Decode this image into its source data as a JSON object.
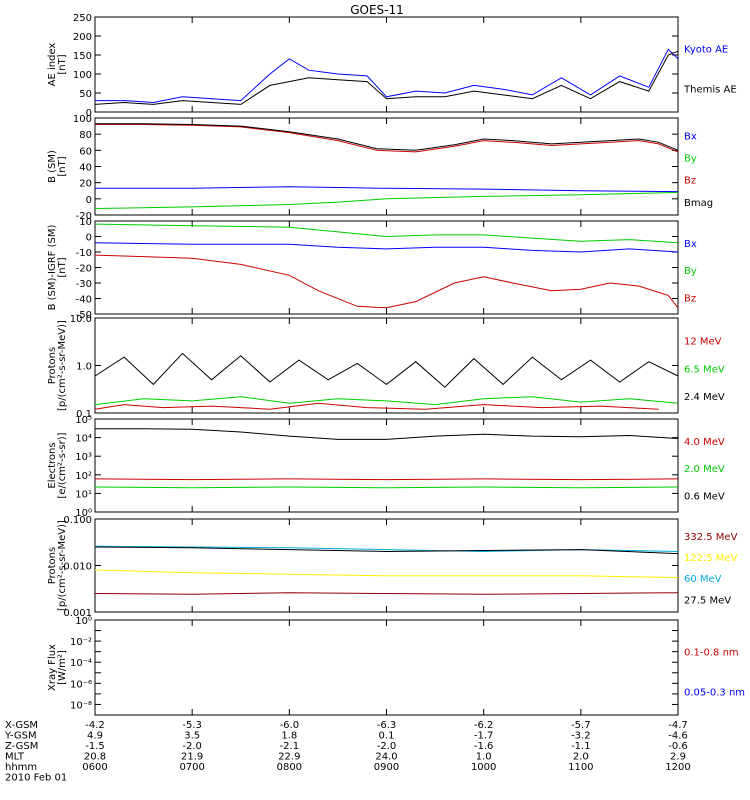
{
  "title": "GOES-11",
  "colors": {
    "black": "#000000",
    "blue": "#0000ff",
    "red": "#cc0000",
    "green": "#00cc00",
    "darkred": "#8b0000",
    "yellow": "#ffee00",
    "cyan": "#00aadd"
  },
  "chart_data": [
    {
      "type": "line",
      "ylabel": "AE index\n[nT]",
      "ylim": [
        0,
        250
      ],
      "yscale": "linear",
      "yticks": [
        0,
        50,
        100,
        150,
        200,
        250
      ],
      "yticklabels": [
        "0",
        "50",
        "100",
        "150",
        "200",
        "250"
      ],
      "series": [
        {
          "name": "Kyoto AE",
          "color": "blue",
          "x": [
            6,
            6.3,
            6.6,
            6.9,
            7.2,
            7.5,
            7.8,
            8.0,
            8.2,
            8.5,
            8.8,
            9.0,
            9.3,
            9.6,
            9.9,
            10.2,
            10.5,
            10.8,
            11.1,
            11.4,
            11.7,
            11.9,
            12.0
          ],
          "y": [
            30,
            30,
            25,
            40,
            35,
            30,
            100,
            140,
            110,
            100,
            95,
            40,
            55,
            50,
            70,
            60,
            45,
            90,
            45,
            95,
            65,
            165,
            140
          ]
        },
        {
          "name": "Themis AE",
          "color": "black",
          "x": [
            6,
            6.3,
            6.6,
            6.9,
            7.2,
            7.5,
            7.8,
            8.0,
            8.2,
            8.5,
            8.8,
            9.0,
            9.3,
            9.6,
            9.9,
            10.2,
            10.5,
            10.8,
            11.1,
            11.4,
            11.7,
            11.9,
            12.0
          ],
          "y": [
            20,
            25,
            20,
            30,
            25,
            20,
            70,
            80,
            90,
            85,
            80,
            35,
            40,
            40,
            55,
            45,
            35,
            70,
            35,
            80,
            55,
            150,
            160
          ]
        }
      ]
    },
    {
      "type": "line",
      "ylabel": "B (SM)\n[nT]",
      "ylim": [
        -20,
        100
      ],
      "yscale": "linear",
      "yticks": [
        -20,
        0,
        20,
        40,
        60,
        80,
        100
      ],
      "yticklabels": [
        "-20",
        "0",
        "20",
        "40",
        "60",
        "80",
        "100"
      ],
      "series": [
        {
          "name": "Bx",
          "color": "blue",
          "x": [
            6,
            7,
            8,
            8.5,
            9,
            10,
            11,
            12
          ],
          "y": [
            13,
            13,
            15,
            14,
            13,
            12,
            10,
            9
          ]
        },
        {
          "name": "By",
          "color": "green",
          "x": [
            6,
            7,
            8,
            8.5,
            9,
            10,
            11,
            12
          ],
          "y": [
            -12,
            -10,
            -7,
            -4,
            0,
            3,
            5,
            8
          ]
        },
        {
          "name": "Bz",
          "color": "red",
          "x": [
            6,
            6.5,
            7,
            7.5,
            8,
            8.5,
            8.9,
            9.3,
            9.7,
            10,
            10.3,
            10.7,
            11,
            11.3,
            11.6,
            11.8,
            12
          ],
          "y": [
            92,
            92,
            91,
            89,
            82,
            72,
            60,
            58,
            65,
            72,
            70,
            66,
            68,
            70,
            72,
            68,
            58
          ]
        },
        {
          "name": "Bmag",
          "color": "black",
          "x": [
            6,
            6.5,
            7,
            7.5,
            8,
            8.5,
            8.9,
            9.3,
            9.7,
            10,
            10.3,
            10.7,
            11,
            11.3,
            11.6,
            11.8,
            12
          ],
          "y": [
            93,
            93,
            92,
            90,
            83,
            74,
            62,
            60,
            67,
            74,
            72,
            68,
            70,
            72,
            74,
            70,
            60
          ]
        }
      ]
    },
    {
      "type": "line",
      "ylabel": "B (SM)-IGRF (SM)\n[nT]",
      "ylim": [
        -50,
        10
      ],
      "yscale": "linear",
      "yticks": [
        -50,
        -40,
        -30,
        -20,
        -10,
        0,
        10
      ],
      "yticklabels": [
        "-50",
        "-40",
        "-30",
        "-20",
        "-10",
        "0",
        "10"
      ],
      "series": [
        {
          "name": "Bx",
          "color": "blue",
          "x": [
            6,
            7,
            8,
            8.5,
            9,
            9.5,
            10,
            10.5,
            11,
            11.5,
            12
          ],
          "y": [
            -4,
            -5,
            -5,
            -7,
            -8,
            -7,
            -7,
            -9,
            -10,
            -8,
            -10
          ]
        },
        {
          "name": "By",
          "color": "green",
          "x": [
            6,
            7,
            8,
            8.5,
            9,
            9.5,
            10,
            10.5,
            11,
            11.5,
            12
          ],
          "y": [
            8,
            7,
            6,
            3,
            0,
            1,
            1,
            -1,
            -3,
            -2,
            -4
          ]
        },
        {
          "name": "Bz",
          "color": "red",
          "x": [
            6,
            6.5,
            7,
            7.5,
            8,
            8.3,
            8.7,
            9.0,
            9.3,
            9.7,
            10,
            10.3,
            10.7,
            11,
            11.3,
            11.6,
            11.9,
            12
          ],
          "y": [
            -12,
            -13,
            -14,
            -18,
            -25,
            -35,
            -45,
            -46,
            -42,
            -30,
            -26,
            -30,
            -35,
            -34,
            -30,
            -32,
            -38,
            -46
          ]
        }
      ]
    },
    {
      "type": "line",
      "ylabel": "Protons\n[p/(cm²-s-sr-MeV)]",
      "ylim": [
        0.1,
        10
      ],
      "yscale": "log",
      "yticks": [
        0.1,
        1,
        10
      ],
      "yticklabels": [
        "0.1",
        "1.0",
        "10.0"
      ],
      "series": [
        {
          "name": "12 MeV",
          "color": "red",
          "x": [
            6.0,
            6.3,
            6.7,
            7.2,
            7.8,
            8.3,
            8.8,
            9.4,
            10.0,
            10.6,
            11.2,
            11.8
          ],
          "y": [
            0.12,
            0.15,
            0.13,
            0.14,
            0.12,
            0.16,
            0.13,
            0.12,
            0.15,
            0.13,
            0.14,
            0.12
          ]
        },
        {
          "name": "6.5 MeV",
          "color": "green",
          "x": [
            6.0,
            6.5,
            7.0,
            7.5,
            8.0,
            8.5,
            9.0,
            9.5,
            10.0,
            10.5,
            11.0,
            11.5,
            12.0
          ],
          "y": [
            0.15,
            0.2,
            0.18,
            0.22,
            0.16,
            0.2,
            0.18,
            0.15,
            0.2,
            0.22,
            0.17,
            0.2,
            0.16
          ]
        },
        {
          "name": "2.4 MeV",
          "color": "black",
          "x": [
            6.0,
            6.3,
            6.6,
            6.9,
            7.2,
            7.5,
            7.8,
            8.1,
            8.4,
            8.7,
            9.0,
            9.3,
            9.6,
            9.9,
            10.2,
            10.5,
            10.8,
            11.1,
            11.4,
            11.7,
            12.0
          ],
          "y": [
            0.6,
            1.5,
            0.4,
            1.8,
            0.5,
            1.6,
            0.45,
            1.3,
            0.5,
            1.1,
            0.4,
            1.2,
            0.35,
            1.4,
            0.4,
            1.5,
            0.5,
            1.3,
            0.45,
            1.2,
            0.6
          ]
        }
      ]
    },
    {
      "type": "line",
      "ylabel": "Electrons\n[e/(cm²-s-sr)]",
      "ylim": [
        1,
        100000
      ],
      "yscale": "log",
      "yticks": [
        1,
        10,
        100,
        1000,
        10000,
        100000
      ],
      "yticklabels": [
        "10⁰",
        "10¹",
        "10²",
        "10³",
        "10⁴",
        "10⁵"
      ],
      "series": [
        {
          "name": "4.0 MeV",
          "color": "red",
          "x": [
            6,
            7,
            8,
            9,
            10,
            11,
            12
          ],
          "y": [
            60,
            55,
            60,
            55,
            60,
            55,
            60
          ]
        },
        {
          "name": "2.0 MeV",
          "color": "green",
          "x": [
            6,
            7,
            8,
            9,
            10,
            11,
            12
          ],
          "y": [
            22,
            20,
            22,
            20,
            22,
            20,
            22
          ]
        },
        {
          "name": "0.6 MeV",
          "color": "black",
          "x": [
            6,
            6.5,
            7,
            7.5,
            8,
            8.5,
            9,
            9.5,
            10,
            10.5,
            11,
            11.5,
            12
          ],
          "y": [
            30000,
            30000,
            28000,
            20000,
            12000,
            8000,
            8000,
            12000,
            15000,
            12000,
            11000,
            13000,
            9000
          ]
        }
      ]
    },
    {
      "type": "line",
      "ylabel": "Protons\n[p/(cm²-s-sr-MeV)]",
      "ylim": [
        0.001,
        0.1
      ],
      "yscale": "log",
      "yticks": [
        0.001,
        0.01,
        0.1
      ],
      "yticklabels": [
        "0.001",
        "0.010",
        "0.100"
      ],
      "series": [
        {
          "name": "332.5 MeV",
          "color": "darkred",
          "x": [
            6,
            7,
            8,
            9,
            10,
            11,
            12
          ],
          "y": [
            0.0025,
            0.0024,
            0.0026,
            0.0025,
            0.0024,
            0.0025,
            0.0026
          ]
        },
        {
          "name": "122.5 MeV",
          "color": "yellow",
          "x": [
            6,
            7,
            8,
            9,
            10,
            11,
            12
          ],
          "y": [
            0.008,
            0.007,
            0.0065,
            0.006,
            0.006,
            0.006,
            0.0055
          ]
        },
        {
          "name": "60 MeV",
          "color": "cyan",
          "x": [
            6,
            7,
            8,
            9,
            10,
            11,
            12
          ],
          "y": [
            0.026,
            0.025,
            0.024,
            0.022,
            0.02,
            0.022,
            0.02
          ]
        },
        {
          "name": "27.5 MeV",
          "color": "black",
          "x": [
            6,
            7,
            8,
            9,
            10,
            11,
            12
          ],
          "y": [
            0.025,
            0.024,
            0.022,
            0.02,
            0.021,
            0.022,
            0.018
          ]
        }
      ]
    },
    {
      "type": "line",
      "ylabel": "Xray Flux\n[W/m²]",
      "ylim": [
        1e-09,
        1
      ],
      "yscale": "log",
      "yticks": [
        1e-09,
        1e-08,
        1e-07,
        1e-06,
        1e-05,
        0.0001,
        0.001,
        0.01,
        0.1,
        1
      ],
      "yticklabels": [
        "",
        "10⁻⁸",
        "",
        "10⁻⁶",
        "",
        "10⁻⁴",
        "",
        "10⁻²",
        "",
        "10⁰"
      ],
      "series": [
        {
          "name": "0.1-0.8 nm",
          "color": "red",
          "x": [],
          "y": []
        },
        {
          "name": "0.05-0.3 nm",
          "color": "blue",
          "x": [],
          "y": []
        }
      ]
    }
  ],
  "legend_colors": [
    [
      "blue",
      "black"
    ],
    [
      "blue",
      "green",
      "red",
      "black"
    ],
    [
      "blue",
      "green",
      "red"
    ],
    [
      "red",
      "green",
      "black"
    ],
    [
      "red",
      "green",
      "black"
    ],
    [
      "darkred",
      "yellow",
      "cyan",
      "black"
    ],
    [
      "red",
      "blue"
    ]
  ],
  "x_axis": {
    "range": [
      6,
      12
    ],
    "positions": [
      6,
      7,
      8,
      9,
      10,
      11,
      12
    ],
    "rows": [
      {
        "label": "X-GSM",
        "values": [
          "-4.2",
          "-5.3",
          "-6.0",
          "-6.3",
          "-6.2",
          "-5.7",
          "-4.7"
        ]
      },
      {
        "label": "Y-GSM",
        "values": [
          "4.9",
          "3.5",
          "1.8",
          "0.1",
          "-1.7",
          "-3.2",
          "-4.6"
        ]
      },
      {
        "label": "Z-GSM",
        "values": [
          "-1.5",
          "-2.0",
          "-2.1",
          "-2.0",
          "-1.6",
          "-1.1",
          "-0.6"
        ]
      },
      {
        "label": "MLT",
        "values": [
          "20.8",
          "21.9",
          "22.9",
          "24.0",
          "1.0",
          "2.0",
          "2.9"
        ]
      },
      {
        "label": "hhmm",
        "values": [
          "0600",
          "0700",
          "0800",
          "0900",
          "1000",
          "1100",
          "1200"
        ]
      }
    ],
    "date": "2010 Feb 01"
  }
}
